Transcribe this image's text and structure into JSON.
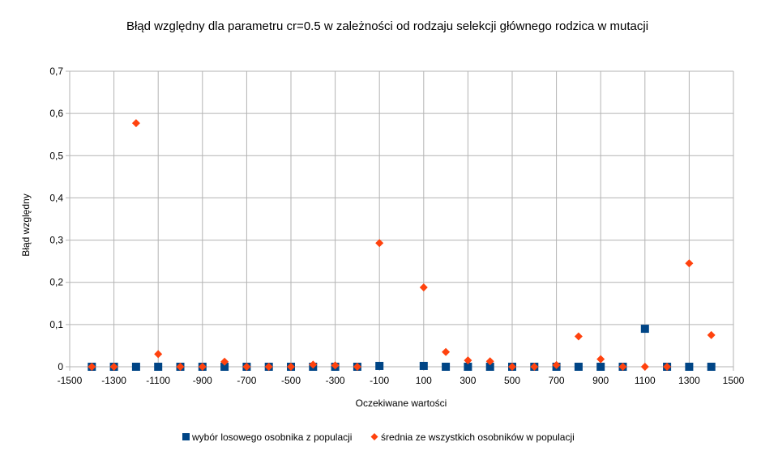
{
  "chart_data": {
    "type": "scatter",
    "title": "Błąd względny dla parametru cr=0.5 w zależności od rodzaju selekcji głównego rodzica w mutacji",
    "xlabel": "Oczekiwane wartości",
    "ylabel": "Błąd względny",
    "xlim": [
      -1500,
      1500
    ],
    "ylim": [
      0,
      0.7
    ],
    "x_ticks": [
      "-1500",
      "-1300",
      "-1100",
      "-900",
      "-700",
      "-500",
      "-300",
      "-100",
      "100",
      "300",
      "500",
      "700",
      "900",
      "1100",
      "1300",
      "1500"
    ],
    "y_ticks": [
      "0",
      "0,1",
      "0,2",
      "0,3",
      "0,4",
      "0,5",
      "0,6",
      "0,7"
    ],
    "grid": true,
    "legend_position": "bottom",
    "series": [
      {
        "name": "wybór losowego osobnika z populacji",
        "color": "#004586",
        "marker": "square",
        "points": [
          [
            -1400,
            0
          ],
          [
            -1300,
            0
          ],
          [
            -1200,
            0
          ],
          [
            -1100,
            0
          ],
          [
            -1000,
            0
          ],
          [
            -900,
            0
          ],
          [
            -800,
            0
          ],
          [
            -700,
            0
          ],
          [
            -600,
            0
          ],
          [
            -500,
            0
          ],
          [
            -400,
            0
          ],
          [
            -300,
            0
          ],
          [
            -200,
            0
          ],
          [
            -100,
            0.002
          ],
          [
            100,
            0.002
          ],
          [
            200,
            0
          ],
          [
            300,
            0
          ],
          [
            400,
            0
          ],
          [
            500,
            0
          ],
          [
            600,
            0
          ],
          [
            700,
            0
          ],
          [
            800,
            0
          ],
          [
            900,
            0
          ],
          [
            1000,
            0
          ],
          [
            1100,
            0.09
          ],
          [
            1200,
            0
          ],
          [
            1300,
            0
          ],
          [
            1400,
            0
          ]
        ]
      },
      {
        "name": "średnia ze wszystkich osobników w populacji",
        "color": "#ff420e",
        "marker": "diamond",
        "points": [
          [
            -1400,
            0
          ],
          [
            -1300,
            0
          ],
          [
            -1200,
            0.577
          ],
          [
            -1100,
            0.03
          ],
          [
            -1000,
            0
          ],
          [
            -900,
            0
          ],
          [
            -800,
            0.012
          ],
          [
            -700,
            0
          ],
          [
            -600,
            0
          ],
          [
            -500,
            0
          ],
          [
            -400,
            0.005
          ],
          [
            -300,
            0.003
          ],
          [
            -200,
            0
          ],
          [
            -100,
            0.293
          ],
          [
            100,
            0.188
          ],
          [
            200,
            0.035
          ],
          [
            300,
            0.015
          ],
          [
            400,
            0.013
          ],
          [
            500,
            0
          ],
          [
            600,
            0
          ],
          [
            700,
            0.004
          ],
          [
            800,
            0.072
          ],
          [
            900,
            0.018
          ],
          [
            1000,
            0
          ],
          [
            1100,
            0
          ],
          [
            1200,
            0
          ],
          [
            1300,
            0.245
          ],
          [
            1400,
            0.075
          ]
        ]
      }
    ]
  }
}
